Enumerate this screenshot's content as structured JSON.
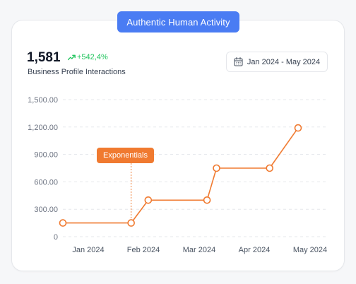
{
  "header": {
    "badge_label": "Authentic Human Activity"
  },
  "summary": {
    "total": "1,581",
    "growth": "+542,4%",
    "description": "Business Profile Interactions"
  },
  "date_range": {
    "label": "Jan 2024 - May 2024",
    "icon": "calendar-icon"
  },
  "colors": {
    "accent": "#f07a30",
    "badge": "#4a7cf3",
    "positive": "#22c55e"
  },
  "chart_data": {
    "type": "line",
    "ylim": [
      0,
      1500
    ],
    "y_ticks": [
      "0",
      "300.00",
      "600.00",
      "900.00",
      "1,200.00",
      "1,500.00"
    ],
    "x_tick_labels": [
      "Jan 2024",
      "Feb 2024",
      "Mar 2024",
      "Apr 2024",
      "May 2024"
    ],
    "grid": true,
    "series": [
      {
        "color": "#f07a30",
        "points": [
          {
            "x": "2024-01-01",
            "y": 150
          },
          {
            "x": "2024-02-06",
            "y": 150
          },
          {
            "x": "2024-02-15",
            "y": 400
          },
          {
            "x": "2024-03-17",
            "y": 400
          },
          {
            "x": "2024-03-22",
            "y": 750
          },
          {
            "x": "2024-04-19",
            "y": 750
          },
          {
            "x": "2024-05-04",
            "y": 1190
          }
        ]
      }
    ],
    "annotation": {
      "label": "Exponentials",
      "x": "2024-02-06"
    }
  }
}
